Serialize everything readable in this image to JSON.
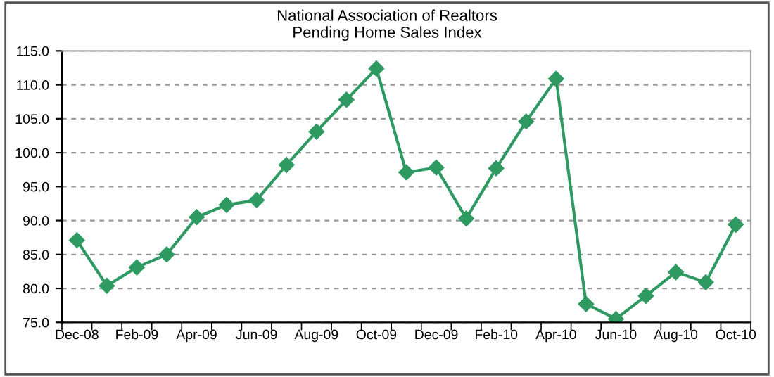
{
  "chart_data": {
    "type": "line",
    "title": "National Association of Realtors\nPending Home Sales Index",
    "categories": [
      "Dec-08",
      null,
      "Feb-09",
      null,
      "Apr-09",
      null,
      "Jun-09",
      null,
      "Aug-09",
      null,
      "Oct-09",
      null,
      "Dec-09",
      null,
      "Feb-10",
      null,
      "Apr-10",
      null,
      "Jun-10",
      null,
      "Aug-10",
      null,
      "Oct-10"
    ],
    "series": [
      {
        "color": "#2e9a62",
        "values": [
          87.1,
          80.4,
          83.1,
          85.0,
          90.5,
          92.3,
          93.0,
          98.2,
          103.1,
          107.8,
          112.4,
          97.1,
          97.8,
          90.3,
          97.7,
          104.6,
          110.9,
          77.7,
          75.5,
          78.9,
          82.4,
          80.9,
          89.4
        ]
      }
    ],
    "ylim": [
      75,
      115
    ],
    "yticks": [
      {
        "value": 75,
        "label": "75.0"
      },
      {
        "value": 80,
        "label": "80.0"
      },
      {
        "value": 85,
        "label": "85.0"
      },
      {
        "value": 90,
        "label": "90.0"
      },
      {
        "value": 95,
        "label": "95.0"
      },
      {
        "value": 100,
        "label": "100.0"
      },
      {
        "value": 105,
        "label": "105.0"
      },
      {
        "value": 110,
        "label": "110.0"
      },
      {
        "value": 115,
        "label": "115.0"
      }
    ],
    "grid": "y",
    "marker": "diamond",
    "line_style": "solid"
  }
}
